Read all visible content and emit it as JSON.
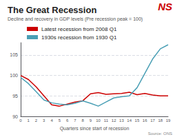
{
  "chart_data": {
    "type": "line",
    "title": "The Great Recession",
    "subtitle": "Decline and recovery in GDP levels (Pre recession peak = 100)",
    "source": "Source: ONS",
    "annotations": [
      {
        "text": "NS",
        "color": "#cc0000"
      }
    ],
    "x": [
      0,
      1,
      2,
      3,
      4,
      5,
      6,
      7,
      8,
      9,
      10,
      11,
      12,
      13,
      14,
      15,
      16,
      17,
      18,
      19
    ],
    "series": [
      {
        "name": "Latest recession from 2008 Q1",
        "color": "#cc0000",
        "values": [
          100,
          99,
          97.2,
          95.0,
          92.8,
          92.5,
          93.0,
          93.5,
          93.8,
          95.5,
          95.8,
          95.4,
          95.5,
          95.6,
          95.9,
          95.3,
          95.6,
          95.2,
          95.0,
          95.0
        ]
      },
      {
        "name": "1930s recession from 1930 Q1",
        "color": "#4a9fb5",
        "values": [
          99.5,
          98.0,
          96.0,
          94.0,
          93.3,
          93.0,
          92.8,
          93.2,
          93.8,
          93.2,
          92.5,
          93.5,
          94.5,
          94.8,
          95.0,
          97.0,
          100.5,
          104.0,
          106.5,
          107.5
        ]
      }
    ],
    "xlabel": "Quarters since start of recession",
    "xlim": [
      0,
      19
    ],
    "xticks": [
      0,
      1,
      2,
      3,
      4,
      5,
      6,
      7,
      8,
      9,
      10,
      11,
      12,
      13,
      14,
      15,
      16,
      17,
      18,
      19
    ],
    "ylim": [
      90,
      108
    ],
    "yticks": [
      90,
      95,
      100,
      105
    ],
    "grid": true,
    "legend": "upper left"
  }
}
